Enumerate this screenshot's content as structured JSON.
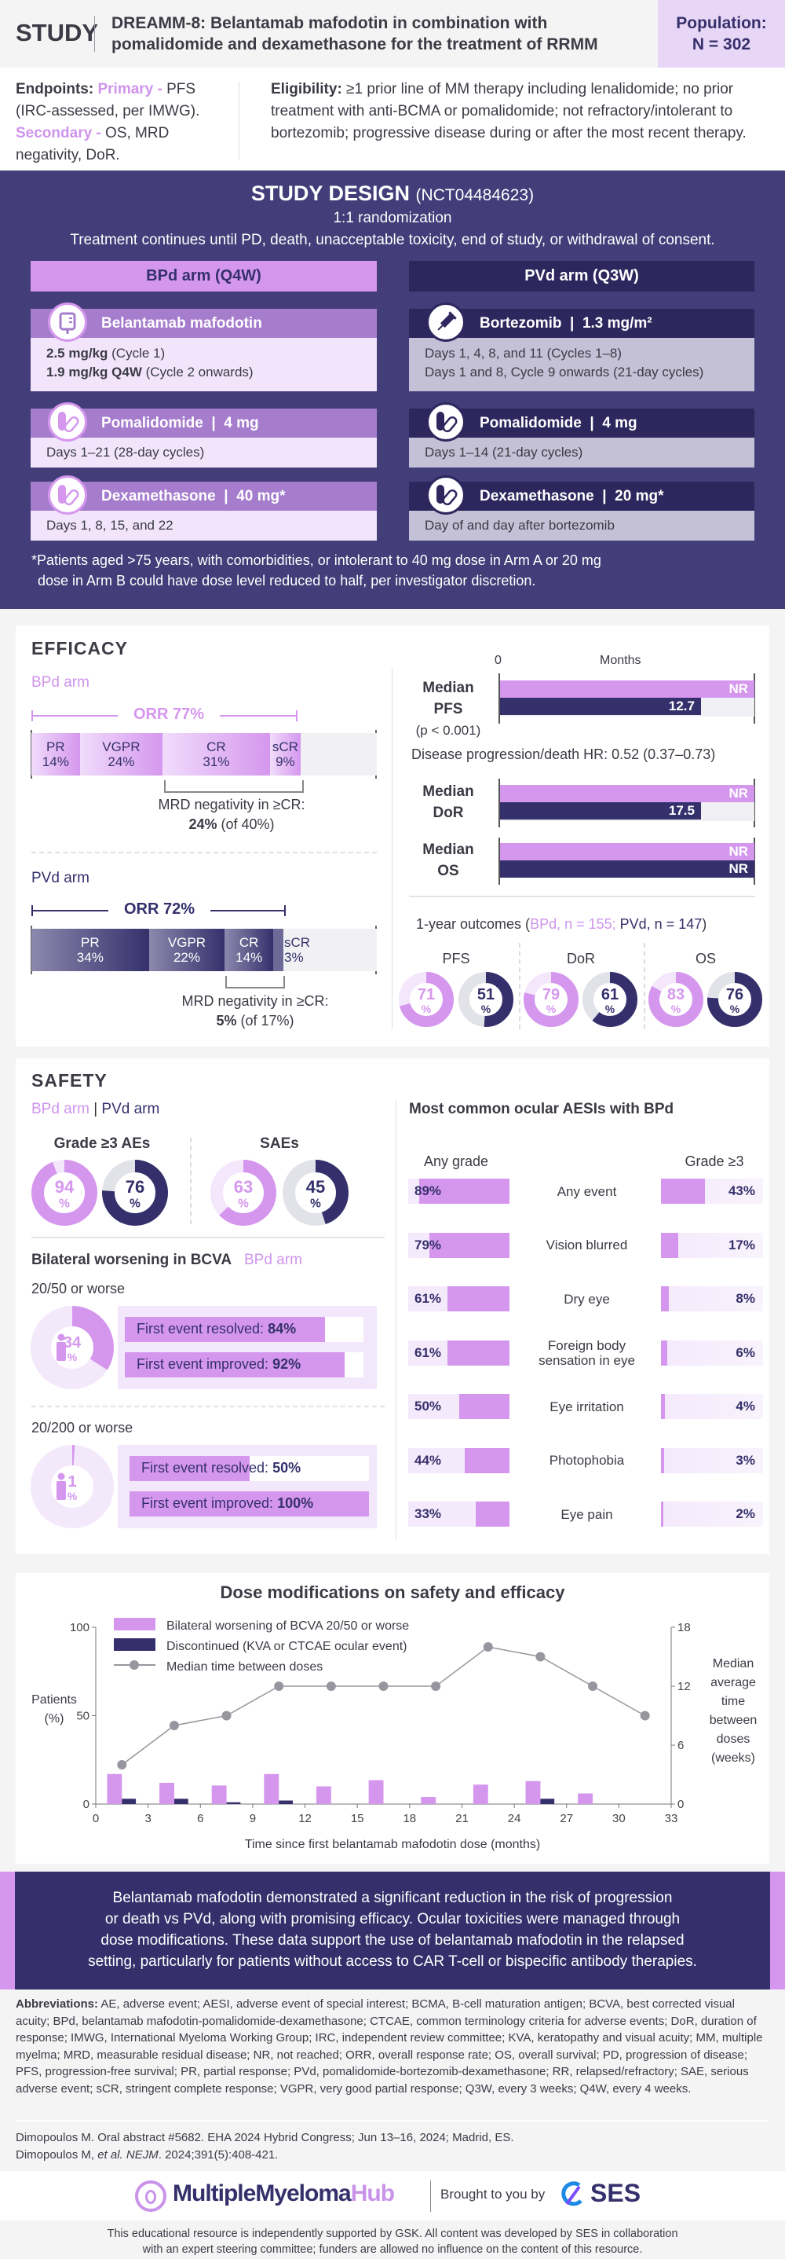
{
  "header": {
    "study": "STUDY",
    "title_line1": "DREAMM-8: Belantamab mafodotin in combination with",
    "title_line2": "pomalidomide and dexamethasone for the treatment of RRMM",
    "population_label": "Population:",
    "population_value": "N = 302"
  },
  "endpoints": {
    "label": "Endpoints:",
    "primary_label": "Primary -",
    "primary_text": " PFS (IRC-assessed, per IMWG).",
    "secondary_label": "Secondary -",
    "secondary_text": " OS, MRD negativity, DoR."
  },
  "eligibility": {
    "label": "Eligibility:",
    "text": " ≥1 prior line of MM therapy including lenalidomide; no prior treatment with anti-BCMA or pomalidomide; not refractory/intolerant to bortezomib; progressive disease during or after the most recent therapy."
  },
  "design": {
    "title": "STUDY DESIGN",
    "nct": "(NCT04484623)",
    "randomization": "1:1 randomization",
    "continuation": "Treatment continues until PD, death, unacceptable toxicity, end of study, or withdrawal of consent.",
    "arms": [
      {
        "header": "BPd arm (Q4W)",
        "drugs": [
          {
            "name": "Belantamab mafodotin",
            "dose": "",
            "icon": "iv-bag-icon",
            "lines": [
              {
                "bold": "2.5 mg/kg",
                "rest": " (Cycle 1)"
              },
              {
                "bold": "1.9 mg/kg Q4W",
                "rest": " (Cycle 2 onwards)"
              }
            ]
          },
          {
            "name": "Pomalidomide",
            "dose": "4 mg",
            "icon": "pill-icon",
            "lines": [
              {
                "bold": "",
                "rest": "Days 1–21 (28-day cycles)"
              }
            ]
          },
          {
            "name": "Dexamethasone",
            "dose": "40 mg*",
            "icon": "pill-icon",
            "lines": [
              {
                "bold": "",
                "rest": "Days 1, 8, 15, and 22"
              }
            ]
          }
        ]
      },
      {
        "header": "PVd arm (Q3W)",
        "drugs": [
          {
            "name": "Bortezomib",
            "dose": "1.3 mg/m²",
            "icon": "syringe-icon",
            "lines": [
              {
                "bold": "",
                "rest": "Days 1, 4, 8, and 11 (Cycles 1–8)"
              },
              {
                "bold": "",
                "rest": "Days 1 and 8, Cycle 9 onwards (21-day cycles)"
              }
            ]
          },
          {
            "name": "Pomalidomide",
            "dose": "4 mg",
            "icon": "pill-icon",
            "lines": [
              {
                "bold": "",
                "rest": "Days 1–14 (21-day cycles)"
              }
            ]
          },
          {
            "name": "Dexamethasone",
            "dose": "20 mg*",
            "icon": "pill-icon",
            "lines": [
              {
                "bold": "",
                "rest": "Day of and day after bortezomib"
              }
            ]
          }
        ]
      }
    ],
    "footnote_1": "*Patients aged >75 years, with comorbidities, or intolerant to 40 mg dose in Arm A or 20 mg",
    "footnote_2": "dose in Arm B could have dose level reduced to half, per investigator discretion."
  },
  "efficacy": {
    "title": "EFFICACY",
    "bpd": {
      "label": "BPd arm",
      "orr": "ORR 77%",
      "orr_value": 77,
      "segments": [
        {
          "name": "PR",
          "pct": 14,
          "text": "14%"
        },
        {
          "name": "VGPR",
          "pct": 24,
          "text": "24%"
        },
        {
          "name": "CR",
          "pct": 31,
          "text": "31%"
        },
        {
          "name": "sCR",
          "pct": 9,
          "text": "9%"
        }
      ],
      "mrd_label": "MRD negativity in ≥CR:",
      "mrd_value": "24%",
      "mrd_of": " (of 40%)"
    },
    "pvd": {
      "label": "PVd arm",
      "orr": "ORR 72%",
      "orr_value": 72,
      "segments": [
        {
          "name": "PR",
          "pct": 34,
          "text": "34%"
        },
        {
          "name": "VGPR",
          "pct": 22,
          "text": "22%"
        },
        {
          "name": "CR",
          "pct": 14,
          "text": "14%"
        },
        {
          "name": "sCR",
          "pct": 3,
          "text": "3%"
        }
      ],
      "mrd_label": "MRD negativity in ≥CR:",
      "mrd_value": "5%",
      "mrd_of": " (of 17%)"
    },
    "axis_zero": "0",
    "axis_label": "Months",
    "medians": [
      {
        "label1": "Median",
        "label2": "PFS",
        "note": "(p < 0.001)",
        "bpd": "NR",
        "pvd": "12.7"
      },
      {
        "label1": "Median",
        "label2": "DoR",
        "note": "",
        "bpd": "NR",
        "pvd": "17.5"
      },
      {
        "label1": "Median",
        "label2": "OS",
        "note": "",
        "bpd": "NR",
        "pvd": "NR"
      }
    ],
    "hr_text": "Disease progression/death HR: 0.52 (0.37–0.73)",
    "one_year": {
      "prefix": "1-year outcomes (",
      "bpd_n": "BPd, n = 155;",
      "pvd_n": " PVd, n = 147",
      "suffix": ")",
      "items": [
        {
          "label": "PFS",
          "bpd": 71,
          "pvd": 51
        },
        {
          "label": "DoR",
          "bpd": 79,
          "pvd": 61
        },
        {
          "label": "OS",
          "bpd": 83,
          "pvd": 76
        }
      ]
    },
    "pct_sign": "%"
  },
  "safety": {
    "title": "SAFETY",
    "bpd_label": "BPd arm",
    "pvd_label": "PVd arm",
    "groups": [
      {
        "label": "Grade ≥3 AEs",
        "bpd": 94,
        "pvd": 76
      },
      {
        "label": "SAEs",
        "bpd": 63,
        "pvd": 45
      }
    ],
    "bcva": {
      "title": "Bilateral worsening in BCVA",
      "arm": "BPd arm",
      "levels": [
        {
          "label": "20/50 or worse",
          "pct": 34,
          "resolved_label": "First event resolved: ",
          "resolved": 84,
          "improved_label": "First event improved: ",
          "improved": 92
        },
        {
          "label": "20/200 or worse",
          "pct": 1,
          "resolved_label": "First event resolved: ",
          "resolved": 50,
          "improved_label": "First event improved: ",
          "improved": 100
        }
      ]
    },
    "aesi": {
      "title": "Most common ocular AESIs with BPd",
      "any_label": "Any grade",
      "g3_label": "Grade ≥3",
      "rows": [
        {
          "label": "Any event",
          "any": 89,
          "g3": 43
        },
        {
          "label": "Vision blurred",
          "any": 79,
          "g3": 17
        },
        {
          "label": "Dry eye",
          "any": 61,
          "g3": 8
        },
        {
          "label": "Foreign body sensation in eye",
          "any": 61,
          "g3": 6
        },
        {
          "label": "Eye irritation",
          "any": 50,
          "g3": 4
        },
        {
          "label": "Photophobia",
          "any": 44,
          "g3": 3
        },
        {
          "label": "Eye pain",
          "any": 33,
          "g3": 2
        }
      ]
    }
  },
  "chart_data": {
    "type": "bar",
    "title": "Dose modifications on safety and efficacy",
    "xlabel": "Time since first belantamab mafodotin dose (months)",
    "ylabel": "Patients (%)",
    "y2label": "Median average time between doses (weeks)",
    "xlim": [
      0,
      33
    ],
    "xticks": [
      0,
      3,
      6,
      9,
      12,
      15,
      18,
      21,
      24,
      27,
      30,
      33
    ],
    "ylim": [
      0,
      100
    ],
    "yticks": [
      0,
      50,
      100
    ],
    "y2lim": [
      0,
      18
    ],
    "y2ticks": [
      0,
      6,
      12,
      18
    ],
    "x": [
      1.5,
      4.5,
      7.5,
      10.5,
      13.5,
      16.5,
      19.5,
      22.5,
      25.5,
      28.5,
      31.5
    ],
    "series": [
      {
        "name": "Bilateral worsening of BCVA 20/50 or worse",
        "type": "bar",
        "axis": "left",
        "color": "#d597ee",
        "values": [
          17,
          12,
          10.5,
          17,
          10,
          13.5,
          4,
          11,
          13,
          6,
          0
        ]
      },
      {
        "name": "Discontinued (KVA or CTCAE ocular event)",
        "type": "bar",
        "axis": "left",
        "color": "#35306b",
        "values": [
          3,
          3,
          1,
          2,
          0,
          0,
          0,
          0,
          3,
          0,
          0
        ]
      },
      {
        "name": "Median time between doses",
        "type": "line",
        "axis": "right",
        "color": "#96969e",
        "values": [
          4,
          8,
          9,
          12,
          12,
          12,
          12,
          16,
          15,
          12,
          9
        ]
      }
    ]
  },
  "conclusion": [
    "Belantamab mafodotin demonstrated a significant reduction in the risk of progression",
    "or death vs PVd, along with promising efficacy. Ocular toxicities were managed through",
    "dose modifications. These data support the use of belantamab mafodotin in the relapsed",
    "setting, particularly for patients without access to CAR T-cell or bispecific antibody therapies."
  ],
  "abbreviations": {
    "label": "Abbreviations:",
    "text": " AE, adverse event; AESI, adverse event of special interest; BCMA, B-cell maturation antigen; BCVA, best corrected visual acuity; BPd, belantamab mafodotin-pomalidomide-dexamethasone; CTCAE, common terminology criteria for adverse events; DoR, duration of response; IMWG, International Myeloma Working Group; IRC, independent review committee; KVA, keratopathy and visual acuity; MM, multiple myelma; MRD, measurable residual disease; NR, not reached; ORR, overall response rate; OS, overall survival; PD, progression of disease; PFS, progression-free survival; PR, partial response; PVd, pomalidomide-bortezomib-dexamethasone; RR, relapsed/refractory; SAE, serious adverse event; sCR, stringent complete response; VGPR, very good partial response; Q3W, every 3 weeks; Q4W, every 4 weeks."
  },
  "references": {
    "ref1": "Dimopoulos M. Oral abstract #5682. EHA 2024 Hybrid Congress; Jun 13–16, 2024; Madrid, ES.",
    "ref2_a": "Dimopoulos M, ",
    "ref2_etal": "et al. NEJM",
    "ref2_b": ". 2024;391(5):408-421."
  },
  "footer": {
    "logo_a": "MultipleMyeloma",
    "logo_b": "Hub",
    "brought": "Brought to you by",
    "ses": "SES",
    "disclaimer_1": "This educational resource is independently supported by GSK. All content was developed by SES in collaboration",
    "disclaimer_2": "with an expert steering committee; funders are allowed no influence on the content of this resource."
  },
  "colors": {
    "bpd": "#d597ee",
    "pvd": "#35306b",
    "design_bg": "#433d79"
  }
}
